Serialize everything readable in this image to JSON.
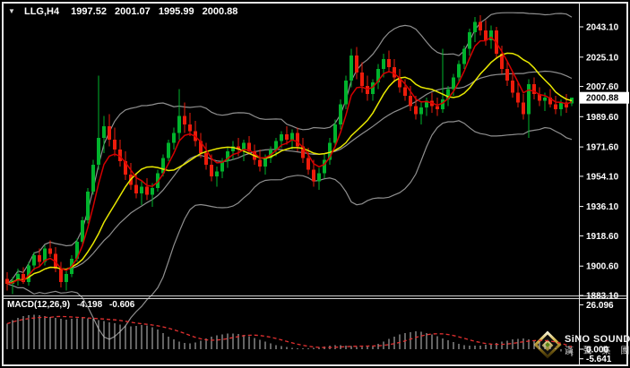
{
  "header": {
    "collapse_glyph": "▼",
    "symbol_period": "LLG,H4",
    "open": "1997.52",
    "high": "2001.07",
    "low": "1995.99",
    "close": "2000.88"
  },
  "macd_panel": {
    "label": "MACD(12,26,9)",
    "macd_value": "-4.198",
    "signal_value": "-0.606"
  },
  "logo": {
    "brand": "SiNO SOUND",
    "chinese": "漢 聲 集 團"
  },
  "chart_data": {
    "type": "candlestick",
    "title": "LLG,H4",
    "symbol": "LLG",
    "timeframe": "H4",
    "legend_position": "none",
    "grid": false,
    "price_axis": {
      "labels": [
        "2043.10",
        "2025.10",
        "2007.60",
        "1989.60",
        "1971.60",
        "1954.10",
        "1936.10",
        "1918.60",
        "1900.60",
        "1883.10"
      ],
      "range": [
        1883.1,
        2043.1
      ],
      "current_price": "2000.88"
    },
    "macd_axis": {
      "labels": [
        "26.096",
        "0.000",
        "-5.641"
      ],
      "values": [
        26.096,
        0,
        -5.641
      ],
      "range": [
        -5.641,
        26.096
      ]
    },
    "colors": {
      "background": "#000000",
      "bull": "#00b32c",
      "bear": "#ed1c0b",
      "ma_fast": "#d40000",
      "ma_slow": "#e8e800",
      "bands": "#8f8f8f",
      "macd_bar": "#c6c6c6",
      "macd_signal": "#e23030",
      "axis_text": "#ffffff",
      "tag_bg": "#ffffff",
      "frame": "#e4e4e4"
    },
    "overlays": [
      "bollinger-upper",
      "bollinger-middle",
      "bollinger-lower",
      "ma-slow-yellow",
      "ma-fast-red"
    ],
    "candles": [
      [
        1893,
        1897,
        1886,
        1890
      ],
      [
        1890,
        1894,
        1884,
        1892
      ],
      [
        1892,
        1899,
        1889,
        1896
      ],
      [
        1896,
        1900,
        1890,
        1891
      ],
      [
        1891,
        1903,
        1889,
        1901
      ],
      [
        1901,
        1909,
        1898,
        1907
      ],
      [
        1907,
        1911,
        1900,
        1903
      ],
      [
        1903,
        1913,
        1901,
        1911
      ],
      [
        1911,
        1916,
        1906,
        1908
      ],
      [
        1908,
        1912,
        1897,
        1899
      ],
      [
        1899,
        1903,
        1888,
        1891
      ],
      [
        1891,
        1898,
        1886,
        1896
      ],
      [
        1896,
        1907,
        1894,
        1905
      ],
      [
        1905,
        1917,
        1903,
        1915
      ],
      [
        1915,
        1930,
        1913,
        1928
      ],
      [
        1928,
        1947,
        1926,
        1945
      ],
      [
        1945,
        1964,
        1943,
        1961
      ],
      [
        1961,
        2014,
        1958,
        1977
      ],
      [
        1977,
        1990,
        1968,
        1984
      ],
      [
        1984,
        1991,
        1972,
        1976
      ],
      [
        1976,
        1983,
        1966,
        1970
      ],
      [
        1970,
        1976,
        1960,
        1963
      ],
      [
        1963,
        1969,
        1952,
        1955
      ],
      [
        1955,
        1962,
        1946,
        1949
      ],
      [
        1949,
        1955,
        1941,
        1944
      ],
      [
        1944,
        1951,
        1937,
        1948
      ],
      [
        1948,
        1953,
        1940,
        1943
      ],
      [
        1943,
        1950,
        1936,
        1947
      ],
      [
        1947,
        1958,
        1945,
        1956
      ],
      [
        1956,
        1967,
        1954,
        1965
      ],
      [
        1965,
        1976,
        1963,
        1974
      ],
      [
        1974,
        1983,
        1970,
        1980
      ],
      [
        1980,
        2006,
        1976,
        1990
      ],
      [
        1990,
        1998,
        1980,
        1985
      ],
      [
        1985,
        1992,
        1978,
        1981
      ],
      [
        1981,
        1987,
        1972,
        1975
      ],
      [
        1975,
        1980,
        1965,
        1968
      ],
      [
        1968,
        1974,
        1958,
        1961
      ],
      [
        1961,
        1967,
        1951,
        1954
      ],
      [
        1954,
        1960,
        1948,
        1957
      ],
      [
        1957,
        1965,
        1953,
        1963
      ],
      [
        1963,
        1971,
        1959,
        1969
      ],
      [
        1969,
        1975,
        1964,
        1972
      ],
      [
        1972,
        1977,
        1966,
        1970
      ],
      [
        1970,
        1976,
        1963,
        1974
      ],
      [
        1974,
        1978,
        1967,
        1969
      ],
      [
        1969,
        1973,
        1961,
        1964
      ],
      [
        1964,
        1970,
        1957,
        1960
      ],
      [
        1960,
        1967,
        1955,
        1965
      ],
      [
        1965,
        1972,
        1962,
        1970
      ],
      [
        1970,
        1977,
        1966,
        1975
      ],
      [
        1975,
        1981,
        1971,
        1979
      ],
      [
        1979,
        1984,
        1973,
        1976
      ],
      [
        1976,
        1982,
        1970,
        1980
      ],
      [
        1980,
        1983,
        1969,
        1972
      ],
      [
        1972,
        1977,
        1962,
        1965
      ],
      [
        1965,
        1971,
        1955,
        1958
      ],
      [
        1958,
        1964,
        1948,
        1951
      ],
      [
        1951,
        1959,
        1946,
        1956
      ],
      [
        1956,
        1967,
        1953,
        1964
      ],
      [
        1964,
        1977,
        1961,
        1974
      ],
      [
        1974,
        1988,
        1971,
        1985
      ],
      [
        1985,
        2000,
        1982,
        1997
      ],
      [
        1997,
        2014,
        1994,
        2011
      ],
      [
        2011,
        2030,
        2007,
        2026
      ],
      [
        2026,
        2031,
        2012,
        2016
      ],
      [
        2016,
        2022,
        2004,
        2008
      ],
      [
        2008,
        2014,
        1999,
        2003
      ],
      [
        2003,
        2012,
        1999,
        2010
      ],
      [
        2010,
        2021,
        2006,
        2018
      ],
      [
        2018,
        2027,
        2013,
        2024
      ],
      [
        2024,
        2029,
        2016,
        2019
      ],
      [
        2019,
        2024,
        2010,
        2013
      ],
      [
        2013,
        2018,
        2004,
        2007
      ],
      [
        2007,
        2012,
        1999,
        2002
      ],
      [
        2002,
        2008,
        1993,
        1996
      ],
      [
        1996,
        2002,
        1988,
        1991
      ],
      [
        1991,
        1998,
        1985,
        1995
      ],
      [
        1995,
        2001,
        1990,
        1999
      ],
      [
        1999,
        2004,
        1992,
        1996
      ],
      [
        1996,
        2001,
        1990,
        1994
      ],
      [
        1994,
        2030,
        1992,
        2000
      ],
      [
        2000,
        2008,
        1996,
        2006
      ],
      [
        2006,
        2015,
        2002,
        2013
      ],
      [
        2013,
        2023,
        2010,
        2021
      ],
      [
        2021,
        2032,
        2018,
        2030
      ],
      [
        2030,
        2042,
        2026,
        2040
      ],
      [
        2040,
        2049,
        2034,
        2046
      ],
      [
        2046,
        2050,
        2038,
        2041
      ],
      [
        2041,
        2047,
        2032,
        2035
      ],
      [
        2035,
        2044,
        2030,
        2041
      ],
      [
        2041,
        2043,
        2024,
        2027
      ],
      [
        2027,
        2032,
        2015,
        2018
      ],
      [
        2018,
        2023,
        2008,
        2011
      ],
      [
        2011,
        2016,
        2001,
        2004
      ],
      [
        2004,
        2010,
        1995,
        1998
      ],
      [
        1998,
        2003,
        1988,
        1991
      ],
      [
        1991,
        2012,
        1977,
        2009
      ],
      [
        2009,
        2013,
        2000,
        2003
      ],
      [
        2003,
        2007,
        1996,
        1999
      ],
      [
        1999,
        2004,
        1993,
        2001
      ],
      [
        2001,
        2006,
        1995,
        1997
      ],
      [
        1997,
        2002,
        1991,
        1994
      ],
      [
        1994,
        2000,
        1990,
        1998
      ],
      [
        1998,
        2003,
        1992,
        1995
      ],
      [
        1997.52,
        2001.07,
        1995.99,
        2000.88
      ]
    ],
    "macd_histogram": [
      15,
      17,
      18.5,
      19.5,
      20,
      20.3,
      20,
      19.5,
      19,
      18.5,
      18,
      17.5,
      17.8,
      18.2,
      18.5,
      18.2,
      17.8,
      17.2,
      16.5,
      15.8,
      15.2,
      14.5,
      14,
      13.5,
      13.8,
      14.2,
      14,
      13,
      11.5,
      9.5,
      7.5,
      5.8,
      4.5,
      3.8,
      3.5,
      4,
      5,
      6.2,
      7.3,
      8.2,
      8.8,
      9.2,
      9.3,
      9,
      8.4,
      7.6,
      6.6,
      5.5,
      4.4,
      3.4,
      2.5,
      1.8,
      1.2,
      0.8,
      0.5,
      0.4,
      0.5,
      0.8,
      1.2,
      1.6,
      2,
      2.3,
      2.4,
      2.2,
      1.8,
      1.4,
      1.2,
      1.5,
      2.2,
      3.2,
      4.5,
      6,
      7.4,
      8.6,
      9.5,
      10.1,
      10.4,
      10.2,
      9.6,
      8.7,
      7.6,
      6.4,
      5.2,
      4.1,
      3.2,
      2.5,
      2.1,
      2,
      2.2,
      2.6,
      3.1,
      3.7,
      4.4,
      5.1,
      5.7,
      6.1,
      6.2,
      5.9,
      5.2,
      4.2,
      3,
      1.7,
      0.4,
      -1.2,
      -2.8,
      -4.198
    ]
  }
}
